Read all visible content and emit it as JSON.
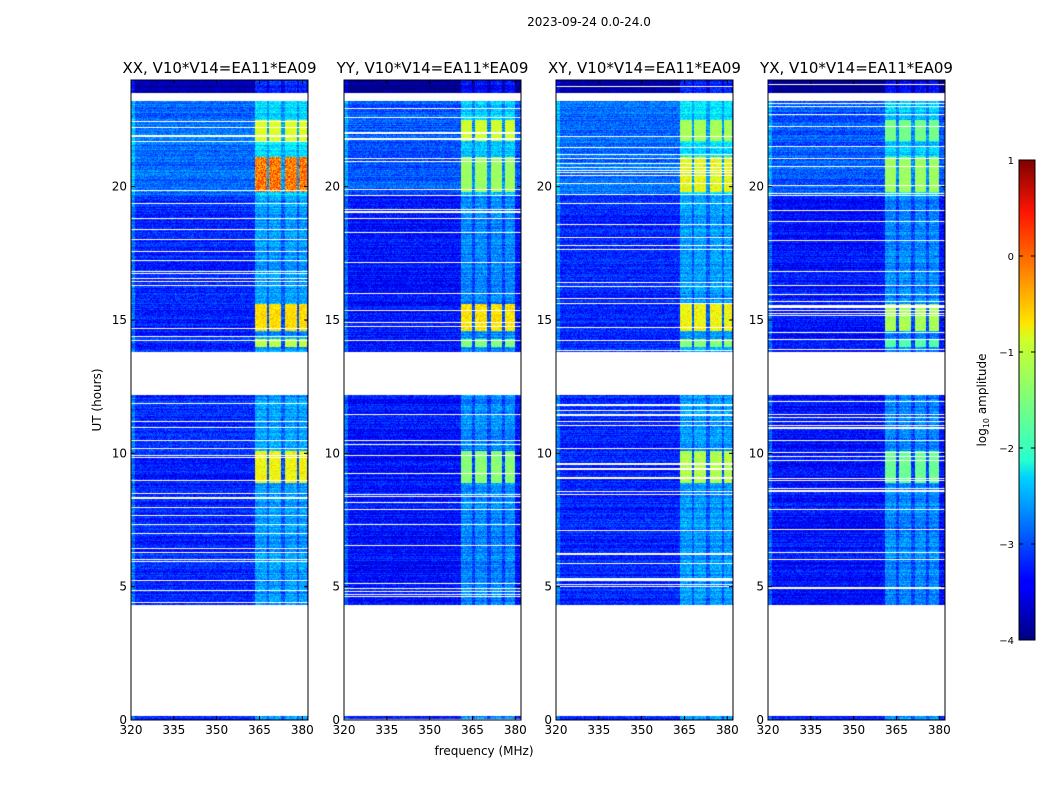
{
  "figure": {
    "title": "2023-09-24 0.0-24.0",
    "ylabel": "UT (hours)",
    "xlabel": "frequency (MHz)"
  },
  "colorbar": {
    "label_base": "log",
    "label_sub": "10",
    "label_rest": " amplitude",
    "ticks": [
      1,
      0,
      -1,
      -2,
      -3,
      -4
    ],
    "tick_labels": [
      "1",
      "0",
      "−1",
      "−2",
      "−3",
      "−4"
    ],
    "range": [
      -4,
      1
    ],
    "colormap": "jet"
  },
  "colors": {
    "missing": "#ffffff",
    "axes": "#000000"
  },
  "chart_data": [
    {
      "type": "heatmap",
      "title": "XX, V10*V14=EA11*EA09",
      "pol": "XX",
      "xlim": [
        320,
        382
      ],
      "ylim": [
        0,
        24
      ],
      "xticks": [
        320,
        335,
        350,
        365,
        380
      ],
      "yticks": [
        0,
        5,
        10,
        15,
        20
      ],
      "background_log10_amplitude": -3.2,
      "rfi_bands_mhz": [
        [
          363.5,
          367.5
        ],
        [
          368.5,
          372.5
        ],
        [
          374.0,
          378.0
        ],
        [
          379.0,
          381.5
        ]
      ],
      "data_hours": [
        [
          0.0,
          0.15
        ],
        [
          4.3,
          12.2
        ],
        [
          13.8,
          23.2
        ],
        [
          23.5,
          24.0
        ]
      ],
      "bright_hour_ranges": [
        {
          "range": [
            19.8,
            21.1
          ],
          "log10_amplitude": -0.7,
          "peak": 0.3
        },
        {
          "range": [
            21.7,
            22.5
          ],
          "log10_amplitude": -1.2,
          "peak": -0.9
        },
        {
          "range": [
            14.6,
            15.6
          ],
          "log10_amplitude": -0.9,
          "peak": -0.5
        },
        {
          "range": [
            8.9,
            10.1
          ],
          "log10_amplitude": -1.2,
          "peak": -0.6
        },
        {
          "range": [
            14.0,
            14.3
          ],
          "log10_amplitude": -1.4,
          "peak": -1.0
        }
      ]
    },
    {
      "type": "heatmap",
      "title": "YY, V10*V14=EA11*EA09",
      "pol": "YY",
      "xlim": [
        320,
        382
      ],
      "ylim": [
        0,
        24
      ],
      "xticks": [
        320,
        335,
        350,
        365,
        380
      ],
      "yticks": [
        0,
        5,
        10,
        15,
        20
      ],
      "background_log10_amplitude": -3.3,
      "rfi_bands_mhz": [
        [
          361.0,
          365.0
        ],
        [
          366.0,
          370.0
        ],
        [
          371.5,
          375.5
        ],
        [
          376.5,
          380.0
        ]
      ],
      "data_hours": [
        [
          0.0,
          0.15
        ],
        [
          4.3,
          12.2
        ],
        [
          13.8,
          23.2
        ],
        [
          23.5,
          24.0
        ]
      ],
      "bright_hour_ranges": [
        {
          "range": [
            19.8,
            21.1
          ],
          "log10_amplitude": -1.4,
          "peak": -1.3
        },
        {
          "range": [
            21.7,
            22.5
          ],
          "log10_amplitude": -1.2,
          "peak": -1.0
        },
        {
          "range": [
            14.6,
            15.6
          ],
          "log10_amplitude": -1.0,
          "peak": -0.5
        },
        {
          "range": [
            8.9,
            10.1
          ],
          "log10_amplitude": -1.6,
          "peak": -1.3
        },
        {
          "range": [
            14.0,
            14.3
          ],
          "log10_amplitude": -1.6,
          "peak": -1.4
        }
      ]
    },
    {
      "type": "heatmap",
      "title": "XY, V10*V14=EA11*EA09",
      "pol": "XY",
      "xlim": [
        320,
        382
      ],
      "ylim": [
        0,
        24
      ],
      "xticks": [
        320,
        335,
        350,
        365,
        380
      ],
      "yticks": [
        0,
        5,
        10,
        15,
        20
      ],
      "background_log10_amplitude": -3.2,
      "rfi_bands_mhz": [
        [
          363.5,
          367.5
        ],
        [
          368.5,
          372.5
        ],
        [
          374.0,
          378.0
        ],
        [
          379.0,
          381.5
        ]
      ],
      "data_hours": [
        [
          0.0,
          0.15
        ],
        [
          4.3,
          12.2
        ],
        [
          13.8,
          23.2
        ],
        [
          23.5,
          24.0
        ]
      ],
      "bright_hour_ranges": [
        {
          "range": [
            19.8,
            21.1
          ],
          "log10_amplitude": -1.3,
          "peak": -0.6
        },
        {
          "range": [
            21.7,
            22.5
          ],
          "log10_amplitude": -1.4,
          "peak": -1.2
        },
        {
          "range": [
            14.6,
            15.6
          ],
          "log10_amplitude": -1.2,
          "peak": -0.6
        },
        {
          "range": [
            8.9,
            10.1
          ],
          "log10_amplitude": -1.5,
          "peak": -1.0
        },
        {
          "range": [
            14.0,
            14.3
          ],
          "log10_amplitude": -1.6,
          "peak": -1.3
        }
      ]
    },
    {
      "type": "heatmap",
      "title": "YX, V10*V14=EA11*EA09",
      "pol": "YX",
      "xlim": [
        320,
        382
      ],
      "ylim": [
        0,
        24
      ],
      "xticks": [
        320,
        335,
        350,
        365,
        380
      ],
      "yticks": [
        0,
        5,
        10,
        15,
        20
      ],
      "background_log10_amplitude": -3.3,
      "rfi_bands_mhz": [
        [
          361.0,
          365.0
        ],
        [
          366.0,
          370.0
        ],
        [
          371.5,
          375.5
        ],
        [
          376.5,
          380.0
        ]
      ],
      "data_hours": [
        [
          0.0,
          0.15
        ],
        [
          4.3,
          12.2
        ],
        [
          13.8,
          23.2
        ],
        [
          23.5,
          24.0
        ]
      ],
      "bright_hour_ranges": [
        {
          "range": [
            19.8,
            21.1
          ],
          "log10_amplitude": -1.4,
          "peak": -1.3
        },
        {
          "range": [
            21.7,
            22.5
          ],
          "log10_amplitude": -1.6,
          "peak": -1.5
        },
        {
          "range": [
            14.6,
            15.6
          ],
          "log10_amplitude": -1.5,
          "peak": -1.1
        },
        {
          "range": [
            8.9,
            10.1
          ],
          "log10_amplitude": -1.8,
          "peak": -1.4
        },
        {
          "range": [
            14.0,
            14.3
          ],
          "log10_amplitude": -1.8,
          "peak": -1.6
        }
      ]
    }
  ]
}
